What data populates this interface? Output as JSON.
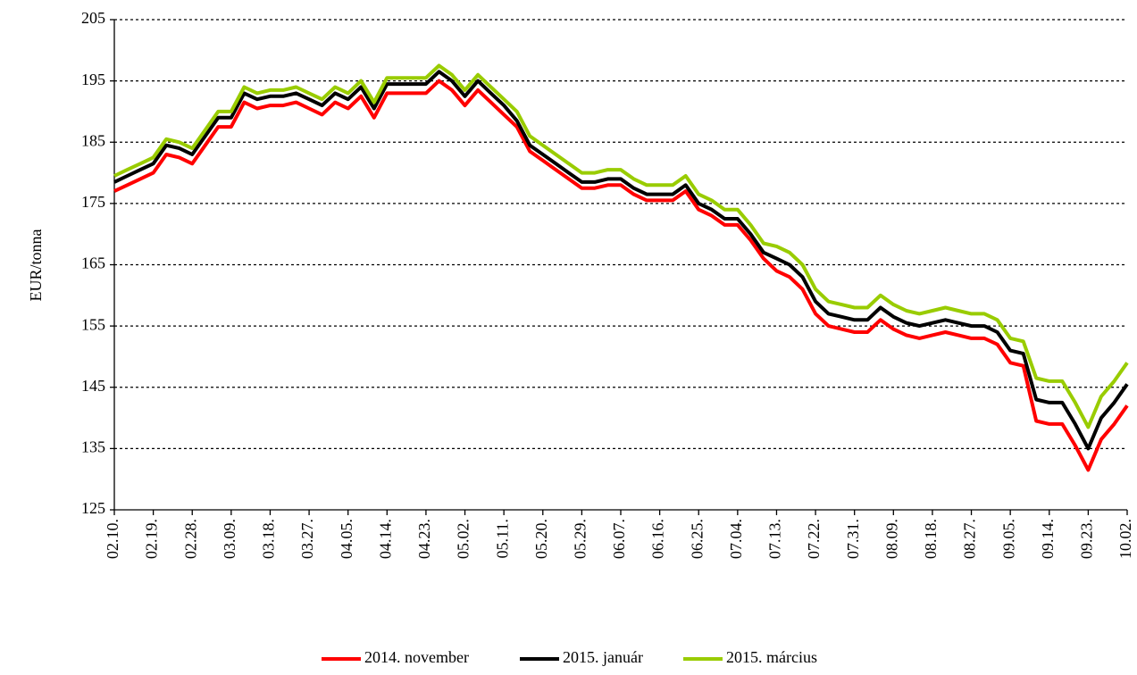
{
  "chart_data": {
    "type": "line",
    "ylabel": "EUR/tonna",
    "categories": [
      "02.10.",
      null,
      null,
      "02.19.",
      null,
      null,
      "02.28.",
      null,
      null,
      "03.09.",
      null,
      null,
      "03.18.",
      null,
      null,
      "03.27.",
      null,
      null,
      "04.05.",
      null,
      null,
      "04.14.",
      null,
      null,
      "04.23.",
      null,
      null,
      "05.02.",
      null,
      null,
      "05.11.",
      null,
      null,
      "05.20.",
      null,
      null,
      "05.29.",
      null,
      null,
      "06.07.",
      null,
      null,
      "06.16.",
      null,
      null,
      "06.25.",
      null,
      null,
      "07.04.",
      null,
      null,
      "07.13.",
      null,
      null,
      "07.22.",
      null,
      null,
      "07.31.",
      null,
      null,
      "08.09.",
      null,
      null,
      "08.18.",
      null,
      null,
      "08.27.",
      null,
      null,
      "09.05.",
      null,
      null,
      "09.14.",
      null,
      null,
      "09.23.",
      null,
      null,
      "10.02."
    ],
    "series": [
      {
        "name": "2014. november",
        "color": "#ff0000",
        "values": [
          177,
          178,
          179,
          180,
          183,
          182.5,
          181.5,
          184.5,
          187.5,
          187.5,
          191.5,
          190.5,
          191,
          191,
          191.5,
          190.5,
          189.5,
          191.5,
          190.5,
          192.5,
          189,
          193,
          193,
          193,
          193,
          195,
          193.5,
          191,
          193.5,
          191.5,
          189.5,
          187.5,
          183.5,
          182,
          180.5,
          179,
          177.5,
          177.5,
          178,
          178,
          176.5,
          175.5,
          175.5,
          175.5,
          177,
          174,
          173,
          171.5,
          171.5,
          169,
          166,
          164,
          163,
          161,
          157,
          155,
          154.5,
          154,
          154,
          156,
          154.5,
          153.5,
          153,
          153.5,
          154,
          153.5,
          153,
          153,
          152,
          149,
          148.5,
          139.5,
          139,
          139,
          135.5,
          131.5,
          136.5,
          139,
          142
        ]
      },
      {
        "name": "2015. január",
        "color": "#000000",
        "values": [
          178.5,
          179.5,
          180.5,
          181.5,
          184.5,
          184,
          183,
          186,
          189,
          189,
          193,
          192,
          192.5,
          192.5,
          193,
          192,
          191,
          193,
          192,
          194,
          190.5,
          194.5,
          194.5,
          194.5,
          194.5,
          196.5,
          195,
          192.5,
          195,
          193,
          191,
          188.5,
          184.5,
          183,
          181.5,
          180,
          178.5,
          178.5,
          179,
          179,
          177.5,
          176.5,
          176.5,
          176.5,
          178,
          175,
          174,
          172.5,
          172.5,
          170,
          167,
          166,
          165,
          163,
          159,
          157,
          156.5,
          156,
          156,
          158,
          156.5,
          155.5,
          155,
          155.5,
          156,
          155.5,
          155,
          155,
          154,
          151,
          150.5,
          143,
          142.5,
          142.5,
          139,
          135,
          140,
          142.5,
          145.5
        ]
      },
      {
        "name": "2015. március",
        "color": "#99cc00",
        "values": [
          179.5,
          180.5,
          181.5,
          182.5,
          185.5,
          185,
          184,
          187,
          190,
          190,
          194,
          193,
          193.5,
          193.5,
          194,
          193,
          192,
          194,
          193,
          195,
          191.5,
          195.5,
          195.5,
          195.5,
          195.5,
          197.5,
          196,
          193.5,
          196,
          194,
          192,
          190,
          186,
          184.5,
          183,
          181.5,
          180,
          180,
          180.5,
          180.5,
          179,
          178,
          178,
          178,
          179.5,
          176.5,
          175.5,
          174,
          174,
          171.5,
          168.5,
          168,
          167,
          165,
          161,
          159,
          158.5,
          158,
          158,
          160,
          158.5,
          157.5,
          157,
          157.5,
          158,
          157.5,
          157,
          157,
          156,
          153,
          152.5,
          146.5,
          146,
          146,
          142.5,
          138.5,
          143.5,
          146,
          149
        ]
      }
    ],
    "ylim": [
      125,
      205
    ],
    "yticks": [
      125,
      135,
      145,
      155,
      165,
      175,
      185,
      195,
      205
    ],
    "grid": true,
    "legend": "bottom"
  }
}
